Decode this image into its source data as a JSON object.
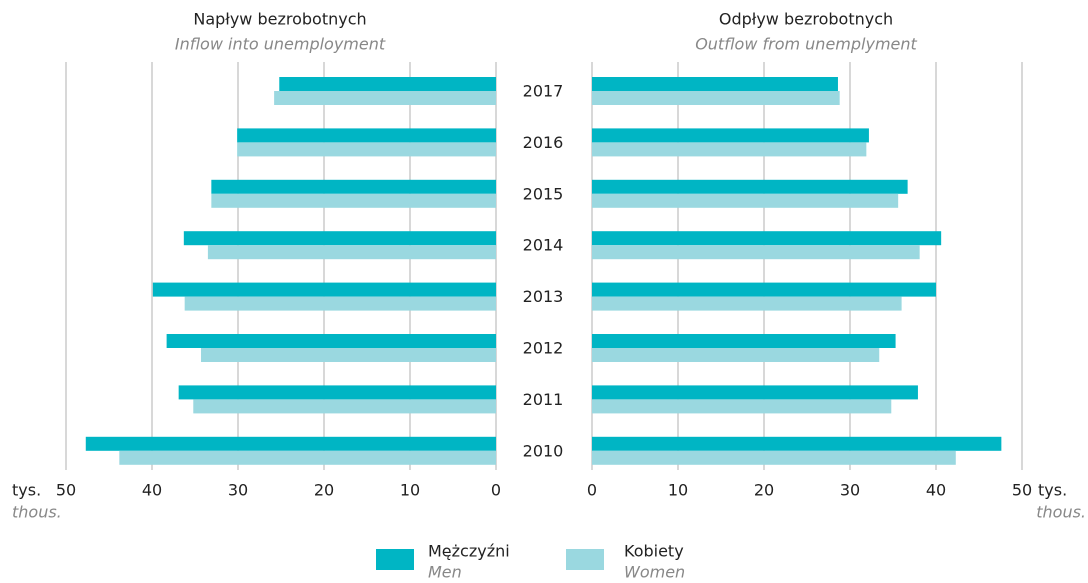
{
  "chart_data": [
    {
      "type": "bar",
      "orientation": "horizontal",
      "title": "Napływ bezrobotnych",
      "subtitle": "Inflow into unemployment",
      "categories": [
        "2017",
        "2016",
        "2015",
        "2014",
        "2013",
        "2012",
        "2011",
        "2010"
      ],
      "series": [
        {
          "name": "Mężczyźni",
          "name_en": "Men",
          "color": "#00b5c4",
          "values": [
            25.2,
            30.1,
            33.1,
            36.3,
            39.9,
            38.3,
            36.9,
            47.7
          ]
        },
        {
          "name": "Kobiety",
          "name_en": "Women",
          "color": "#9ad8e0",
          "values": [
            25.8,
            30.1,
            33.1,
            33.5,
            36.2,
            34.3,
            35.2,
            43.8
          ]
        }
      ],
      "xlim": [
        0,
        50
      ],
      "xticks": [
        0,
        10,
        20,
        30,
        40,
        50
      ],
      "x_inverted": true,
      "grid": true,
      "xlabel": "tys.",
      "xlabel_en": "thous."
    },
    {
      "type": "bar",
      "orientation": "horizontal",
      "title": "Odpływ bezrobotnych",
      "subtitle": "Outflow  from unemplyment",
      "series": [
        {
          "color": "#00b5c4",
          "values": [
            28.6,
            32.2,
            36.7,
            40.6,
            40.0,
            35.3,
            37.9,
            47.6
          ]
        },
        {
          "color": "#9ad8e0",
          "values": [
            28.8,
            31.9,
            35.6,
            38.1,
            36.0,
            33.4,
            34.8,
            42.3
          ]
        }
      ],
      "xlim": [
        0,
        50
      ],
      "xticks": [
        0,
        10,
        20,
        30,
        40,
        50
      ],
      "x_inverted": false,
      "grid": true,
      "xlabel": "tys.",
      "xlabel_en": "thous."
    }
  ]
}
